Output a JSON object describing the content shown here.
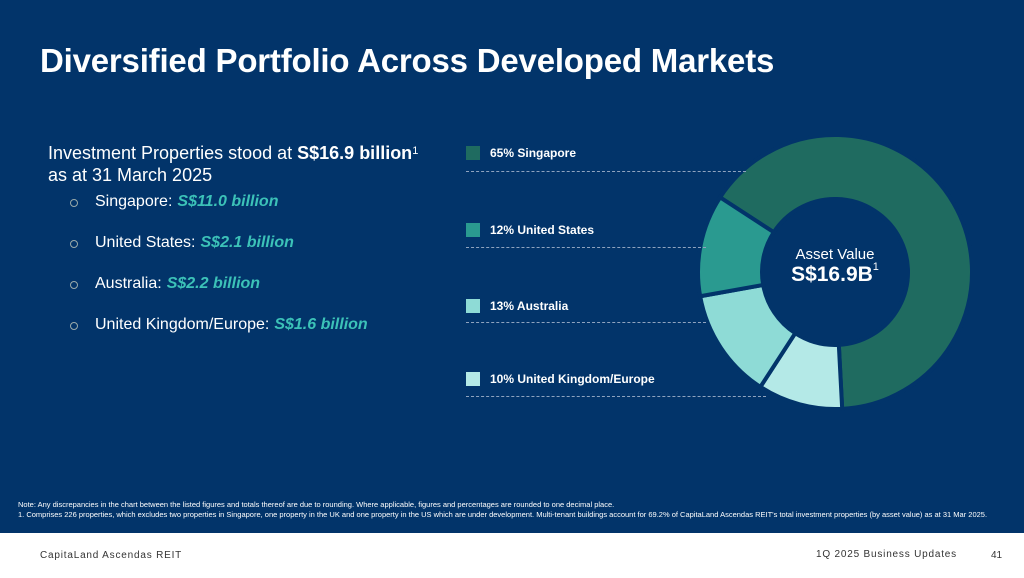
{
  "title": "Diversified Portfolio Across Developed Markets",
  "intro": {
    "prefix": "Investment Properties stood at ",
    "amount": "S$16.9 billion",
    "sup": "1",
    "suffix": "as at 31 March 2025"
  },
  "bullets": [
    {
      "label": "Singapore:",
      "value": "S$11.0 billion"
    },
    {
      "label": "United States:",
      "value": "S$2.1 billion"
    },
    {
      "label": "Australia:",
      "value": "S$2.2 billion"
    },
    {
      "label": "United Kingdom/Europe:",
      "value": "S$1.6 billion"
    }
  ],
  "chart_data": {
    "type": "pie",
    "variant": "donut",
    "title": "Asset Value",
    "center_value": "S$16.9B",
    "center_sup": "1",
    "categories": [
      "Singapore",
      "United States",
      "Australia",
      "United Kingdom/Europe"
    ],
    "values": [
      65,
      12,
      13,
      10
    ],
    "legend": [
      "65% Singapore",
      "12% United States",
      "13% Australia",
      "10%  United Kingdom/Europe"
    ],
    "colors": [
      "#1f6b60",
      "#2a9a90",
      "#8edbd6",
      "#b4e9e7"
    ],
    "legend_position": "left"
  },
  "notes": {
    "note": "Note: Any discrepancies in the chart between the listed figures and totals thereof are due to rounding. Where applicable, figures and percentages are rounded to one decimal place.",
    "footnote": "1.   Comprises 226 properties, which excludes two properties in Singapore, one property in the UK and one property in the US which are under development. Multi-tenant buildings account for 69.2% of CapitaLand Ascendas REIT's total investment properties (by asset value) as at 31 Mar 2025."
  },
  "footer": {
    "left": "CapitaLand Ascendas REIT",
    "right": "1Q 2025 Business Updates",
    "page": "41"
  }
}
